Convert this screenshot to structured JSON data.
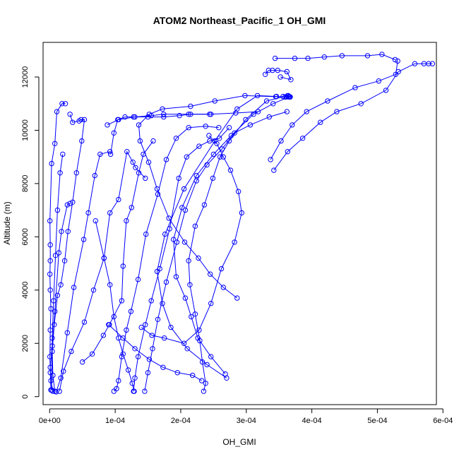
{
  "chart_data": {
    "type": "line",
    "title": "ATOM2 Northeast_Pacific_1 OH_GMI",
    "xlabel": "OH_GMI",
    "ylabel": "Altitude (m)",
    "xlim": [
      -1e-05,
      0.00059
    ],
    "ylim": [
      -300,
      13300
    ],
    "xticks": [
      0,
      0.0001,
      0.0002,
      0.0003,
      0.0004,
      0.0005,
      0.0006
    ],
    "xtick_labels": [
      "0e+00",
      "1e-04",
      "2e-04",
      "3e-04",
      "4e-04",
      "5e-04",
      "6e-04"
    ],
    "yticks": [
      0,
      2000,
      4000,
      6000,
      8000,
      10000,
      12000
    ],
    "ytick_labels": [
      "0",
      "2000",
      "4000",
      "6000",
      "8000",
      "10000",
      "12000"
    ],
    "grid": false,
    "legend": "none",
    "color": "#0000ff",
    "series": [
      {
        "points": [
          [
            5e-06,
            200
          ],
          [
            2e-06,
            600
          ],
          [
            1e-06,
            1100
          ],
          [
            4e-06,
            1900
          ],
          [
            8e-06,
            3200
          ],
          [
            1.4e-05,
            5400
          ],
          [
            1.8e-05,
            6200
          ],
          [
            2.7e-05,
            7200
          ],
          [
            3.1e-05,
            7250
          ]
        ]
      },
      {
        "points": [
          [
            2e-06,
            250
          ],
          [
            1e-06,
            900
          ],
          [
            5e-07,
            1500
          ],
          [
            1e-06,
            2500
          ],
          [
            2e-06,
            3300
          ],
          [
            1e-06,
            4000
          ],
          [
            5e-07,
            4600
          ],
          [
            1e-06,
            5100
          ],
          [
            1e-06,
            5700
          ],
          [
            5e-07,
            6600
          ],
          [
            3e-06,
            8750
          ],
          [
            8e-06,
            9500
          ],
          [
            1.1e-05,
            10700
          ],
          [
            1.9e-05,
            11000
          ],
          [
            2.4e-05,
            11000
          ]
        ]
      },
      {
        "points": [
          [
            8e-06,
            200
          ],
          [
            5e-06,
            800
          ],
          [
            4e-06,
            1700
          ],
          [
            7e-06,
            2700
          ],
          [
            1.2e-05,
            3800
          ],
          [
            1.7e-05,
            4200
          ],
          [
            2.3e-05,
            5100
          ],
          [
            2.8e-05,
            6200
          ],
          [
            3.5e-05,
            7300
          ],
          [
            4.1e-05,
            8400
          ],
          [
            4.9e-05,
            9600
          ],
          [
            5.3e-05,
            10400
          ],
          [
            4.8e-05,
            10400
          ],
          [
            4.5e-05,
            10350
          ],
          [
            3.5e-05,
            10300
          ],
          [
            3.1e-05,
            10600
          ]
        ]
      },
      {
        "points": [
          [
            1e-05,
            180
          ],
          [
            1.7e-05,
            700
          ],
          [
            2.7e-05,
            2400
          ],
          [
            3.7e-05,
            4100
          ],
          [
            5.2e-05,
            5900
          ],
          [
            5.9e-05,
            6900
          ],
          [
            6.9e-05,
            8300
          ],
          [
            7.7e-05,
            9100
          ],
          [
            9.2e-05,
            9200
          ]
        ]
      },
      {
        "points": [
          [
            1.5e-05,
            200
          ],
          [
            2.1e-05,
            950
          ],
          [
            3.3e-05,
            1700
          ],
          [
            5.3e-05,
            2800
          ],
          [
            6.7e-05,
            4000
          ],
          [
            8.3e-05,
            5200
          ],
          [
            9.2e-05,
            6900
          ],
          [
            0.000105,
            7400
          ],
          [
            0.000118,
            9200
          ],
          [
            0.000127,
            8800
          ],
          [
            0.000131,
            8600
          ],
          [
            0.000146,
            8200
          ]
        ]
      },
      {
        "points": [
          [
            5e-05,
            1300
          ],
          [
            6.5e-05,
            1600
          ],
          [
            8.2e-05,
            2300
          ],
          [
            9.1e-05,
            2700
          ],
          [
            0.00011,
            3600
          ],
          [
            0.000112,
            4900
          ],
          [
            0.000117,
            6600
          ],
          [
            0.000125,
            7100
          ],
          [
            0.000136,
            8400
          ],
          [
            0.000143,
            9100
          ],
          [
            0.000158,
            9600
          ]
        ]
      },
      {
        "points": [
          [
            9.8e-05,
            200
          ],
          [
            0.000102,
            300
          ],
          [
            0.000105,
            600
          ],
          [
            0.00011,
            1500
          ],
          [
            0.000117,
            2500
          ],
          [
            0.000124,
            3200
          ],
          [
            0.000135,
            4400
          ],
          [
            0.000147,
            6100
          ],
          [
            0.000165,
            7600
          ],
          [
            0.000178,
            8900
          ],
          [
            0.000193,
            9700
          ],
          [
            0.000212,
            10100
          ],
          [
            0.000238,
            10150
          ],
          [
            0.000258,
            10100
          ]
        ]
      },
      {
        "points": [
          [
            0.000128,
            200
          ],
          [
            0.00013,
            700
          ],
          [
            0.000135,
            1500
          ],
          [
            0.000146,
            2700
          ],
          [
            0.000155,
            3600
          ],
          [
            0.000168,
            4800
          ],
          [
            0.000183,
            6300
          ],
          [
            0.000197,
            8200
          ],
          [
            0.000209,
            9000
          ],
          [
            0.000228,
            9400
          ],
          [
            0.000244,
            9600
          ],
          [
            0.000259,
            9700
          ],
          [
            0.000274,
            10100
          ]
        ]
      },
      {
        "points": [
          [
            0.000145,
            200
          ],
          [
            0.00015,
            900
          ],
          [
            0.000157,
            1800
          ],
          [
            0.000165,
            2900
          ],
          [
            0.000178,
            4300
          ],
          [
            0.000194,
            5800
          ],
          [
            0.000207,
            7000
          ],
          [
            0.000224,
            8100
          ],
          [
            0.00024,
            8700
          ],
          [
            0.000263,
            9300
          ],
          [
            0.000282,
            9900
          ],
          [
            0.000306,
            10200
          ],
          [
            0.000335,
            10500
          ],
          [
            0.000362,
            10700
          ]
        ]
      },
      {
        "points": [
          [
            0.000235,
            200
          ],
          [
            0.000238,
            500
          ],
          [
            0.000233,
            1300
          ],
          [
            0.000229,
            2100
          ],
          [
            0.000222,
            3100
          ],
          [
            0.000214,
            4200
          ],
          [
            0.000212,
            5100
          ],
          [
            0.000222,
            6400
          ],
          [
            0.000236,
            7200
          ],
          [
            0.000249,
            8200
          ],
          [
            0.00026,
            9000
          ],
          [
            0.000274,
            9600
          ],
          [
            0.000299,
            10400
          ],
          [
            0.000331,
            11100
          ],
          [
            0.000363,
            11300
          ],
          [
            0.000365,
            11270
          ]
        ]
      },
      {
        "points": [
          [
            0.000268,
            850
          ],
          [
            0.000246,
            1500
          ],
          [
            0.000226,
            2200
          ],
          [
            0.000216,
            3000
          ],
          [
            0.000207,
            3700
          ],
          [
            0.000193,
            4500
          ],
          [
            0.000189,
            5900
          ],
          [
            0.000202,
            7100
          ],
          [
            0.000224,
            8300
          ],
          [
            0.00025,
            9100
          ],
          [
            0.000277,
            9800
          ],
          [
            0.000311,
            10600
          ],
          [
            0.000341,
            11000
          ],
          [
            0.000365,
            11250
          ]
        ]
      },
      {
        "points": [
          [
            0.00027,
            700
          ],
          [
            0.00024,
            1200
          ],
          [
            0.00021,
            1800
          ],
          [
            0.000185,
            2600
          ],
          [
            0.000172,
            3500
          ],
          [
            0.000164,
            4700
          ],
          [
            0.000176,
            6100
          ],
          [
            0.000205,
            7800
          ],
          [
            0.000252,
            9600
          ],
          [
            0.000286,
            10800
          ],
          [
            0.000317,
            11300
          ],
          [
            0.000346,
            11270
          ],
          [
            0.000367,
            11250
          ]
        ]
      },
      {
        "points": [
          [
            0.000286,
            3700
          ],
          [
            0.000265,
            4100
          ],
          [
            0.000245,
            4600
          ],
          [
            0.000227,
            5200
          ],
          [
            0.000206,
            5800
          ],
          [
            0.000182,
            6700
          ],
          [
            0.000164,
            7800
          ],
          [
            0.000151,
            8800
          ],
          [
            0.000138,
            9600
          ],
          [
            0.000136,
            10200
          ],
          [
            0.000152,
            10600
          ],
          [
            0.000172,
            10800
          ],
          [
            0.000215,
            10900
          ],
          [
            0.000252,
            11100
          ],
          [
            0.000298,
            11300
          ],
          [
            0.000345,
            11260
          ],
          [
            0.000365,
            11250
          ]
        ]
      },
      {
        "points": [
          [
            0.00014,
            2600
          ],
          [
            0.000156,
            2300
          ],
          [
            0.000175,
            2200
          ],
          [
            0.000205,
            2000
          ],
          [
            0.000228,
            2500
          ],
          [
            0.000246,
            3500
          ],
          [
            0.000262,
            4800
          ],
          [
            0.000282,
            5800
          ],
          [
            0.000293,
            6900
          ],
          [
            0.000288,
            7700
          ],
          [
            0.000276,
            8500
          ],
          [
            0.000265,
            9000
          ],
          [
            0.000255,
            9500
          ],
          [
            0.000243,
            9800
          ]
        ]
      },
      {
        "points": [
          [
            9e-05,
            2700
          ],
          [
            0.000112,
            2200
          ],
          [
            0.00013,
            1800
          ],
          [
            0.000152,
            1400
          ],
          [
            0.000173,
            1100
          ],
          [
            0.000195,
            900
          ],
          [
            0.000218,
            800
          ],
          [
            0.000232,
            600
          ]
        ]
      },
      {
        "points": [
          [
            9.3e-05,
            9100
          ],
          [
            9.8e-05,
            9900
          ],
          [
            0.000104,
            10400
          ],
          [
            0.000115,
            10500
          ],
          [
            0.000128,
            10500
          ],
          [
            0.00015,
            10500
          ],
          [
            0.000174,
            10500
          ],
          [
            0.000198,
            10550
          ],
          [
            0.000215,
            10600
          ],
          [
            0.000244,
            10600
          ]
        ]
      },
      {
        "points": [
          [
            8.8e-05,
            10200
          ],
          [
            0.000105,
            10400
          ],
          [
            0.00013,
            10500
          ],
          [
            0.000155,
            10550
          ],
          [
            0.000174,
            10600
          ],
          [
            0.000212,
            10600
          ],
          [
            0.000246,
            10600
          ],
          [
            0.000284,
            10650
          ],
          [
            0.000318,
            10700
          ]
        ]
      },
      {
        "points": [
          [
            0.000342,
            8500
          ],
          [
            0.000363,
            9200
          ],
          [
            0.000386,
            9700
          ],
          [
            0.000413,
            10300
          ],
          [
            0.000438,
            10700
          ],
          [
            0.000475,
            11000
          ],
          [
            0.000513,
            11500
          ],
          [
            0.000532,
            12200
          ],
          [
            0.000557,
            12500
          ],
          [
            0.000571,
            12500
          ],
          [
            0.000578,
            12500
          ],
          [
            0.000584,
            12500
          ]
        ]
      },
      {
        "points": [
          [
            0.000337,
            8900
          ],
          [
            0.000353,
            9600
          ],
          [
            0.00037,
            10200
          ],
          [
            0.000392,
            10700
          ],
          [
            0.000424,
            11100
          ],
          [
            0.000466,
            11600
          ],
          [
            0.000502,
            11850
          ],
          [
            0.000528,
            12100
          ],
          [
            0.000531,
            12600
          ]
        ]
      },
      {
        "points": [
          [
            0.000329,
            12100
          ],
          [
            0.000334,
            12250
          ],
          [
            0.00034,
            12250
          ],
          [
            0.000348,
            12250
          ],
          [
            0.000362,
            12200
          ],
          [
            0.000368,
            11900
          ],
          [
            0.000352,
            12000
          ]
        ]
      },
      {
        "points": [
          [
            0.000344,
            12700
          ],
          [
            0.000374,
            12700
          ],
          [
            0.000394,
            12700
          ],
          [
            0.000419,
            12750
          ],
          [
            0.000446,
            12800
          ],
          [
            0.000485,
            12800
          ],
          [
            0.000507,
            12850
          ],
          [
            0.000527,
            12650
          ]
        ]
      },
      {
        "points": [
          [
            0.000361,
            11250
          ],
          [
            0.000366,
            11260
          ],
          [
            0.000364,
            11300
          ],
          [
            0.000359,
            11250
          ],
          [
            0.000356,
            11270
          ]
        ]
      },
      {
        "points": [
          [
            7e-05,
            6600
          ],
          [
            8.3e-05,
            5200
          ],
          [
            9.2e-05,
            4200
          ],
          [
            9.8e-05,
            3000
          ],
          [
            0.000105,
            2200
          ],
          [
            0.000112,
            1600
          ],
          [
            0.00012,
            1000
          ],
          [
            0.000126,
            500
          ],
          [
            0.000129,
            200
          ]
        ]
      },
      {
        "points": [
          [
            3e-06,
            250
          ],
          [
            4e-06,
            2200
          ],
          [
            6e-06,
            3600
          ],
          [
            9e-06,
            5300
          ],
          [
            1.2e-05,
            7000
          ],
          [
            1.6e-05,
            8400
          ],
          [
            2e-05,
            9100
          ]
        ]
      }
    ]
  }
}
